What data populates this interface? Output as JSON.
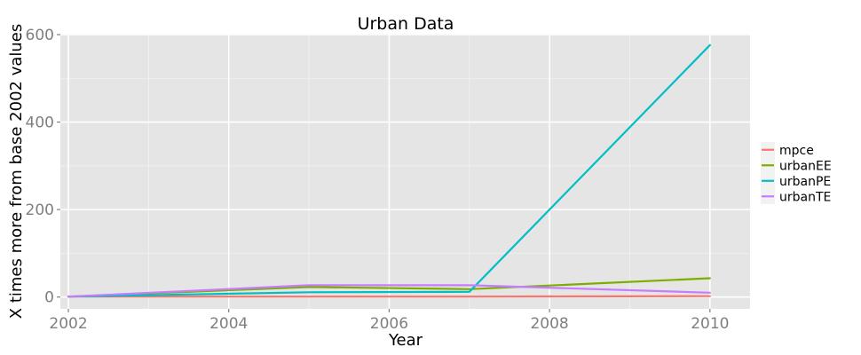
{
  "chart_data": {
    "type": "line",
    "title": "Urban Data",
    "xlabel": "Year",
    "ylabel": "X times more from base 2002 values",
    "xlim": [
      2001.9,
      2010.5
    ],
    "ylim": [
      -27,
      602
    ],
    "x_ticks": [
      2002,
      2004,
      2006,
      2008,
      2010
    ],
    "x_tick_labels": [
      "2002",
      "2004",
      "2006",
      "2008",
      "2010"
    ],
    "y_ticks": [
      0,
      200,
      400,
      600
    ],
    "y_tick_labels": [
      "0",
      "200",
      "400",
      "600"
    ],
    "grid": true,
    "legend_position": "right",
    "x": [
      2002,
      2005,
      2007,
      2010
    ],
    "series": [
      {
        "name": "mpce",
        "color": "#F8766D",
        "values": [
          1,
          1,
          1,
          2
        ]
      },
      {
        "name": "urbanEE",
        "color": "#7CAE00",
        "values": [
          1,
          23,
          18,
          43
        ]
      },
      {
        "name": "urbanPE",
        "color": "#00BFC4",
        "values": [
          1,
          11,
          12,
          576
        ]
      },
      {
        "name": "urbanTE",
        "color": "#C77CFF",
        "values": [
          1,
          27,
          27,
          10
        ]
      }
    ]
  }
}
